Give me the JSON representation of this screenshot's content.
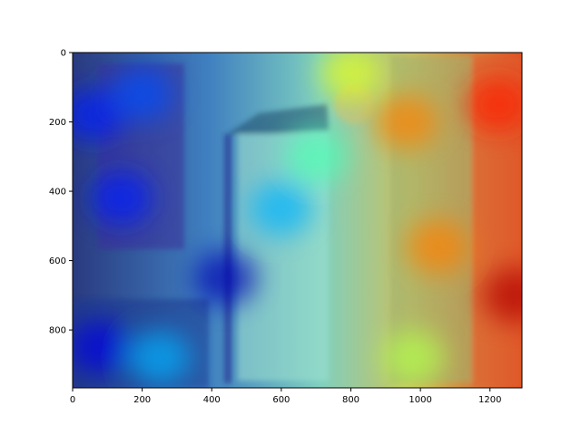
{
  "chart_data": {
    "type": "heatmap",
    "title": "",
    "xlabel": "",
    "ylabel": "",
    "xlim": [
      0,
      1292
    ],
    "ylim": [
      967,
      0
    ],
    "grid": false,
    "legend": "none",
    "colormap": "jet",
    "overlay_alpha": 0.55,
    "x_ticks": [
      {
        "value": 0,
        "label": "0"
      },
      {
        "value": 200,
        "label": "200"
      },
      {
        "value": 400,
        "label": "400"
      },
      {
        "value": 600,
        "label": "600"
      },
      {
        "value": 800,
        "label": "800"
      },
      {
        "value": 1000,
        "label": "1000"
      },
      {
        "value": 1200,
        "label": "1200"
      }
    ],
    "y_ticks": [
      {
        "value": 0,
        "label": "0"
      },
      {
        "value": 200,
        "label": "200"
      },
      {
        "value": 400,
        "label": "400"
      },
      {
        "value": 600,
        "label": "600"
      },
      {
        "value": 800,
        "label": "800"
      }
    ],
    "background_image": "blurred indoor room photo: framed picture on left wall, lamp, white cabinet, round clock, curtains on right",
    "heat_hotspots": [
      {
        "x": 60,
        "y": 180,
        "level": 0.15
      },
      {
        "x": 200,
        "y": 120,
        "level": 0.2
      },
      {
        "x": 140,
        "y": 420,
        "level": 0.15
      },
      {
        "x": 80,
        "y": 850,
        "level": 0.1
      },
      {
        "x": 250,
        "y": 880,
        "level": 0.3
      },
      {
        "x": 440,
        "y": 650,
        "level": 0.05
      },
      {
        "x": 600,
        "y": 450,
        "level": 0.3
      },
      {
        "x": 700,
        "y": 300,
        "level": 0.45
      },
      {
        "x": 800,
        "y": 60,
        "level": 0.6
      },
      {
        "x": 960,
        "y": 200,
        "level": 0.75
      },
      {
        "x": 1050,
        "y": 560,
        "level": 0.75
      },
      {
        "x": 1220,
        "y": 150,
        "level": 0.85
      },
      {
        "x": 1270,
        "y": 700,
        "level": 0.95
      },
      {
        "x": 980,
        "y": 880,
        "level": 0.55
      }
    ]
  }
}
